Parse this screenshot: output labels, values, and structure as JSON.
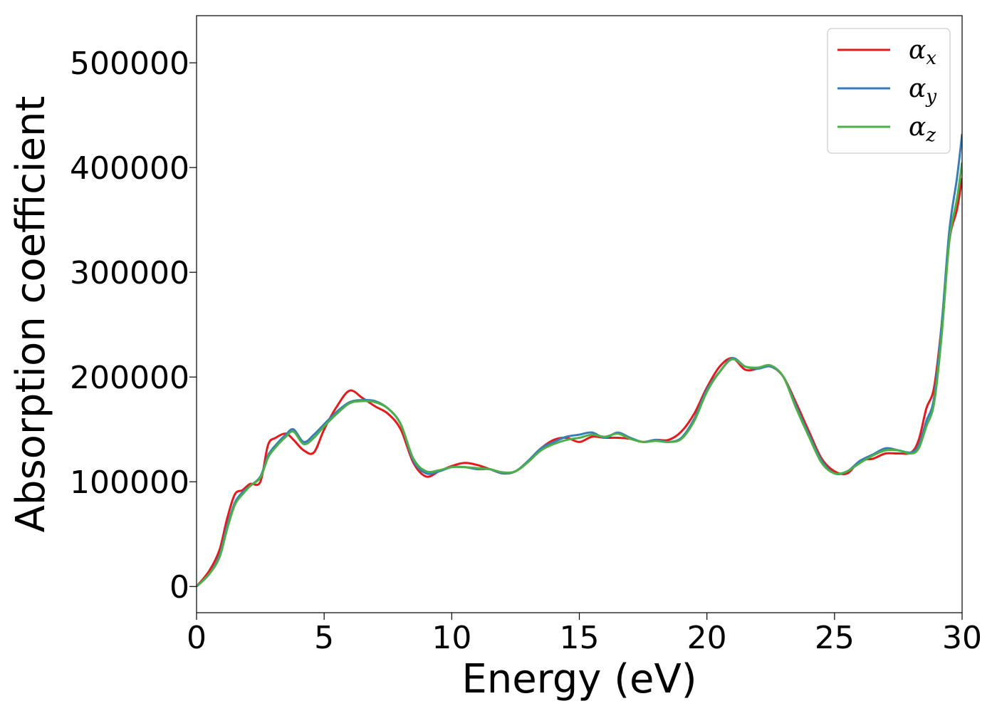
{
  "chart_data": {
    "type": "line",
    "xlabel": "Energy (eV)",
    "ylabel": "Absorption coefficient",
    "xlim": [
      0,
      30
    ],
    "ylim": [
      -25000,
      545000
    ],
    "xticks": [
      0,
      5,
      10,
      15,
      20,
      25,
      30
    ],
    "xtick_labels": [
      "0",
      "5",
      "10",
      "15",
      "20",
      "25",
      "30"
    ],
    "yticks": [
      0,
      100000,
      200000,
      300000,
      400000,
      500000
    ],
    "ytick_labels": [
      "0",
      "100000",
      "200000",
      "300000",
      "400000",
      "500000"
    ],
    "grid": false,
    "legend_position": "top-right",
    "series": [
      {
        "name": "αx",
        "legend_base": "α",
        "legend_sub": "x",
        "color": "#e41a1c",
        "x": [
          0,
          0.5,
          0.9,
          1.2,
          1.5,
          1.8,
          2.1,
          2.5,
          2.8,
          3.1,
          3.5,
          3.8,
          4.2,
          4.6,
          5.0,
          5.5,
          6.0,
          6.5,
          7.0,
          7.5,
          8.0,
          8.5,
          9.0,
          9.5,
          10.0,
          10.5,
          11.0,
          11.5,
          12.0,
          12.5,
          13.0,
          13.5,
          14.0,
          14.5,
          15.0,
          15.5,
          16.0,
          16.5,
          17.0,
          17.5,
          18.0,
          18.5,
          19.0,
          19.5,
          20.0,
          20.5,
          21.0,
          21.5,
          22.0,
          22.5,
          23.0,
          23.5,
          24.0,
          24.5,
          25.0,
          25.5,
          26.0,
          26.5,
          27.0,
          27.5,
          28.0,
          28.3,
          28.6,
          28.9,
          29.2,
          29.5,
          29.8,
          30.0
        ],
        "y": [
          0,
          15000,
          35000,
          65000,
          88000,
          92000,
          98000,
          100000,
          135000,
          142000,
          146000,
          140000,
          130000,
          128000,
          150000,
          172000,
          187000,
          180000,
          172000,
          165000,
          150000,
          118000,
          105000,
          110000,
          115000,
          118000,
          116000,
          112000,
          108000,
          110000,
          120000,
          132000,
          140000,
          142000,
          138000,
          143000,
          142000,
          142000,
          141000,
          138000,
          140000,
          140000,
          148000,
          165000,
          190000,
          210000,
          218000,
          207000,
          208000,
          210000,
          200000,
          175000,
          148000,
          122000,
          110000,
          108000,
          120000,
          122000,
          127000,
          127000,
          128000,
          140000,
          170000,
          190000,
          250000,
          330000,
          360000,
          390000
        ]
      },
      {
        "name": "αy",
        "legend_base": "α",
        "legend_sub": "y",
        "color": "#377eb8",
        "x": [
          0,
          0.5,
          0.9,
          1.2,
          1.5,
          1.8,
          2.1,
          2.5,
          2.8,
          3.1,
          3.5,
          3.8,
          4.2,
          4.6,
          5.0,
          5.5,
          6.0,
          6.5,
          7.0,
          7.5,
          8.0,
          8.5,
          9.0,
          9.5,
          10.0,
          10.5,
          11.0,
          11.5,
          12.0,
          12.5,
          13.0,
          13.5,
          14.0,
          14.5,
          15.0,
          15.5,
          16.0,
          16.5,
          17.0,
          17.5,
          18.0,
          18.5,
          19.0,
          19.5,
          20.0,
          20.5,
          21.0,
          21.5,
          22.0,
          22.5,
          23.0,
          23.5,
          24.0,
          24.5,
          25.0,
          25.5,
          26.0,
          26.5,
          27.0,
          27.5,
          28.0,
          28.3,
          28.6,
          28.9,
          29.2,
          29.5,
          29.8,
          30.0
        ],
        "y": [
          0,
          12000,
          30000,
          58000,
          80000,
          90000,
          96000,
          105000,
          125000,
          135000,
          145000,
          150000,
          138000,
          145000,
          155000,
          167000,
          176000,
          178000,
          177000,
          170000,
          155000,
          120000,
          108000,
          110000,
          114000,
          114000,
          112000,
          112000,
          108000,
          110000,
          120000,
          132000,
          138000,
          143000,
          145000,
          147000,
          142000,
          147000,
          142000,
          138000,
          140000,
          138000,
          142000,
          160000,
          188000,
          205000,
          218000,
          210000,
          208000,
          210000,
          200000,
          172000,
          145000,
          120000,
          108000,
          110000,
          120000,
          126000,
          132000,
          130000,
          128000,
          135000,
          158000,
          180000,
          250000,
          340000,
          390000,
          432000
        ]
      },
      {
        "name": "αz",
        "legend_base": "α",
        "legend_sub": "z",
        "color": "#4daf4a",
        "x": [
          0,
          0.5,
          0.9,
          1.2,
          1.5,
          1.8,
          2.1,
          2.5,
          2.8,
          3.1,
          3.5,
          3.8,
          4.2,
          4.6,
          5.0,
          5.5,
          6.0,
          6.5,
          7.0,
          7.5,
          8.0,
          8.5,
          9.0,
          9.5,
          10.0,
          10.5,
          11.0,
          11.5,
          12.0,
          12.5,
          13.0,
          13.5,
          14.0,
          14.5,
          15.0,
          15.5,
          16.0,
          16.5,
          17.0,
          17.5,
          18.0,
          18.5,
          19.0,
          19.5,
          20.0,
          20.5,
          21.0,
          21.5,
          22.0,
          22.5,
          23.0,
          23.5,
          24.0,
          24.5,
          25.0,
          25.5,
          26.0,
          26.5,
          27.0,
          27.5,
          28.0,
          28.3,
          28.6,
          28.9,
          29.2,
          29.5,
          29.8,
          30.0
        ],
        "y": [
          0,
          12000,
          28000,
          55000,
          78000,
          88000,
          96000,
          104000,
          123000,
          133000,
          143000,
          148000,
          136000,
          142000,
          153000,
          165000,
          175000,
          177000,
          176000,
          170000,
          155000,
          122000,
          110000,
          111000,
          114000,
          114000,
          113000,
          112000,
          109000,
          110000,
          119000,
          130000,
          136000,
          140000,
          142000,
          145000,
          143000,
          146000,
          141000,
          138000,
          139000,
          138000,
          141000,
          158000,
          186000,
          205000,
          217000,
          210000,
          209000,
          211000,
          200000,
          170000,
          143000,
          118000,
          108000,
          110000,
          118000,
          125000,
          130000,
          130000,
          127000,
          132000,
          153000,
          175000,
          240000,
          330000,
          370000,
          405000
        ]
      }
    ]
  }
}
